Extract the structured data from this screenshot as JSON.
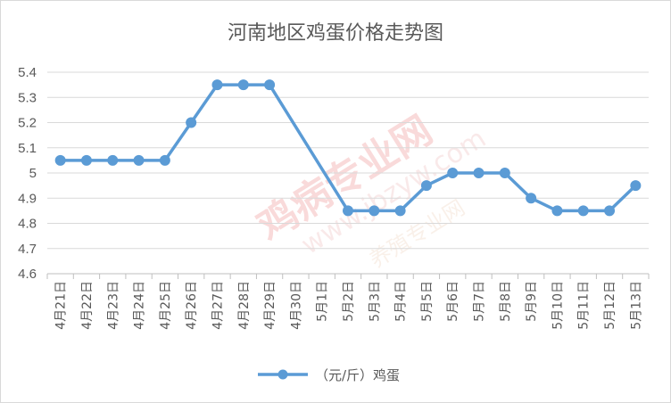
{
  "chart_data": {
    "type": "line",
    "title": "河南地区鸡蛋价格走势图",
    "xlabel": "",
    "ylabel": "",
    "categories": [
      "4月21日",
      "4月22日",
      "4月23日",
      "4月24日",
      "4月25日",
      "4月26日",
      "4月27日",
      "4月28日",
      "4月29日",
      "4月30日",
      "5月1日",
      "5月2日",
      "5月3日",
      "5月4日",
      "5月5日",
      "5月6日",
      "5月7日",
      "5月8日",
      "5月9日",
      "5月10日",
      "5月11日",
      "5月12日",
      "5月13日"
    ],
    "y_ticks": [
      "4.6",
      "4.7",
      "4.8",
      "4.9",
      "5",
      "5.1",
      "5.2",
      "5.3",
      "5.4"
    ],
    "ylim": [
      4.6,
      5.4
    ],
    "series": [
      {
        "name": "（元/斤）鸡蛋",
        "color": "#5b9bd5",
        "values": [
          5.05,
          5.05,
          5.05,
          5.05,
          5.05,
          5.2,
          5.35,
          5.35,
          5.35,
          null,
          null,
          4.85,
          4.85,
          4.85,
          4.95,
          5.0,
          5.0,
          5.0,
          4.9,
          4.85,
          4.85,
          4.85,
          4.95
        ]
      }
    ],
    "grid": true,
    "legend_position": "bottom",
    "watermark": {
      "main": "鸡病专业网",
      "url": "www.jbzyw.com",
      "minor": "养殖专业网"
    }
  }
}
